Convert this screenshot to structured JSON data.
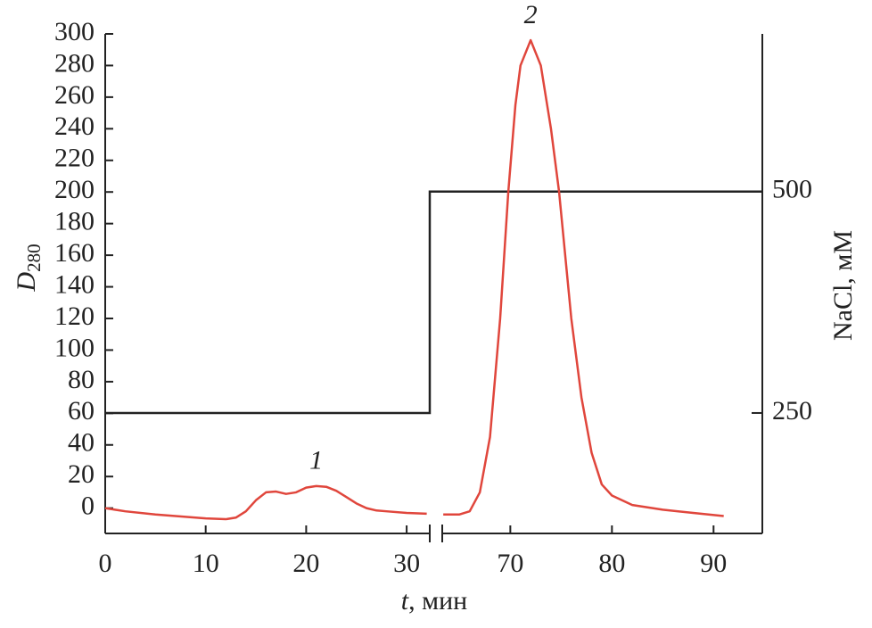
{
  "chart_data": {
    "type": "line",
    "ylabel": "D",
    "ylabel_sub": "280",
    "xlabel": "t",
    "xlabel_rest": ", мин",
    "y2label": "NaCl, мМ",
    "ylim": [
      -16,
      300
    ],
    "yticks": [
      0,
      20,
      40,
      60,
      80,
      100,
      120,
      140,
      160,
      180,
      200,
      220,
      240,
      260,
      280,
      300
    ],
    "y2lim": [
      114,
      678
    ],
    "y2ticks": [
      250,
      500
    ],
    "x_segments": [
      {
        "xlim": [
          0,
          32.3
        ],
        "xticks": [
          0,
          10,
          20,
          30
        ],
        "x": [
          0,
          2,
          5,
          8,
          10,
          12,
          13,
          14,
          15,
          16,
          17,
          18,
          19,
          20,
          21,
          22,
          23,
          24,
          25,
          26,
          27,
          28,
          30,
          32
        ],
        "values": [
          0,
          -2,
          -4,
          -5.5,
          -6.5,
          -7,
          -6,
          -2,
          5,
          10,
          10.5,
          9,
          10,
          13,
          14,
          13.5,
          11,
          7,
          3,
          0,
          -1.5,
          -2,
          -3,
          -3.5
        ]
      },
      {
        "xlim": [
          63.3,
          94.8
        ],
        "xticks": [
          70,
          80,
          90
        ],
        "x": [
          63.4,
          65,
          66,
          67,
          68,
          69,
          69.8,
          70.5,
          71,
          72,
          73,
          74,
          74.8,
          76,
          77,
          78,
          79,
          80,
          82,
          85,
          88,
          91
        ],
        "values": [
          -4,
          -4,
          -2,
          10,
          45,
          120,
          200,
          255,
          280,
          296,
          280,
          240,
          200,
          120,
          70,
          35,
          15,
          8,
          2,
          -1,
          -3,
          -5
        ]
      }
    ],
    "color": "#e0463c",
    "nacl": {
      "color": "#222222",
      "x": [
        0,
        32.3,
        32.3,
        94.8
      ],
      "values": [
        250,
        250,
        500,
        500
      ]
    },
    "annotations": [
      {
        "text": "1",
        "x": 21,
        "y": 14
      },
      {
        "text": "2",
        "x": 72,
        "y": 296
      }
    ]
  }
}
